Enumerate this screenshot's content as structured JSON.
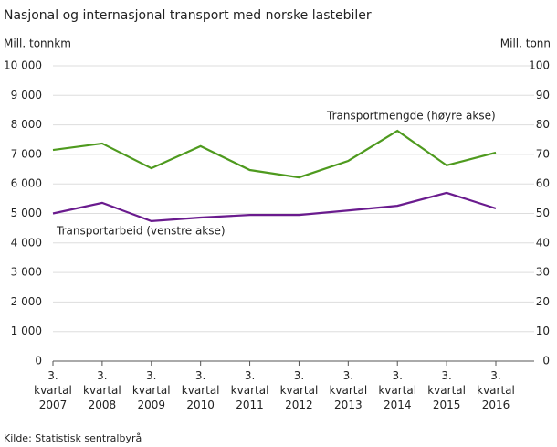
{
  "chart_data": {
    "type": "line",
    "title": "Nasjonal og internasjonal transport med norske lastebiler",
    "y_label": "Mill. tonnkm",
    "y2_label": "Mill. tonn",
    "source": "Kilde: Statistisk sentralbyrå",
    "categories": [
      "3. kvartal 2007",
      "3. kvartal 2008",
      "3. kvartal 2009",
      "3. kvartal 2010",
      "3. kvartal 2011",
      "3. kvartal 2012",
      "3. kvartal 2013",
      "3. kvartal 2014",
      "3. kvartal 2015",
      "3. kvartal 2016"
    ],
    "series": [
      {
        "name": "Transportmengde  (høyre akse)",
        "color": "#4e9a1e",
        "axis": "y2",
        "values": [
          71.5,
          73.7,
          65.3,
          72.8,
          64.7,
          62.2,
          67.8,
          78.0,
          66.3,
          70.6
        ]
      },
      {
        "name": "Transportarbeid  (venstre akse)",
        "color": "#6a1b8e",
        "values": [
          5000,
          5360,
          4740,
          4860,
          4950,
          4950,
          5100,
          5260,
          5700,
          5170
        ]
      }
    ],
    "ylim": [
      0,
      10000
    ],
    "yticks": [
      0,
      {
        "value": 1000,
        "label": "1 000"
      },
      {
        "value": 2000,
        "label": "2 000"
      },
      {
        "value": 3000,
        "label": "3 000"
      },
      {
        "value": 4000,
        "label": "4 000"
      },
      {
        "value": 5000,
        "label": "5 000"
      },
      {
        "value": 6000,
        "label": "6 000"
      },
      {
        "value": 7000,
        "label": "7 000"
      },
      {
        "value": 8000,
        "label": "8 000"
      },
      {
        "value": 9000,
        "label": "9 000"
      },
      {
        "value": 10000,
        "label": "10 000"
      }
    ],
    "y2lim": [
      0,
      100
    ],
    "y2ticks": [
      0,
      10,
      20,
      30,
      40,
      50,
      60,
      70,
      80,
      90,
      100
    ],
    "grid": true
  }
}
